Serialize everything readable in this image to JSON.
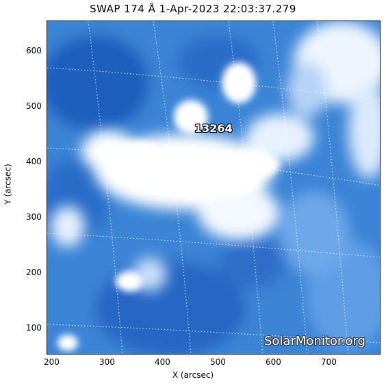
{
  "title": "SWAP 174 Å   1-Apr-2023 22:03:37.279",
  "x_axis": {
    "label": "X (arcsec)",
    "ticks": [
      "200",
      "300",
      "400",
      "500",
      "600",
      "700"
    ]
  },
  "y_axis": {
    "label": "Y (arcsec)",
    "ticks": [
      "100",
      "200",
      "300",
      "400",
      "500",
      "600"
    ]
  },
  "active_region": "13264",
  "watermark": "SolarMonitor.org",
  "colors": {
    "background": "#ffffff",
    "map_dark": "#1e5fbf",
    "map_mid": "#5d9ee8",
    "map_light": "#ffffff"
  }
}
